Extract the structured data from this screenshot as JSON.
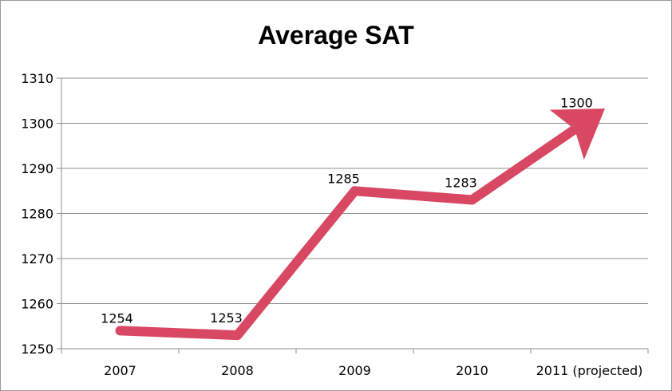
{
  "chart_data": {
    "type": "line",
    "title": "Average SAT",
    "xlabel": "",
    "ylabel": "",
    "categories": [
      "2007",
      "2008",
      "2009",
      "2010",
      "2011 (projected)"
    ],
    "series": [
      {
        "values": [
          1254,
          1253,
          1285,
          1283,
          1300
        ],
        "color": "#d94862"
      }
    ],
    "data_labels": [
      "1254",
      "1253",
      "1285",
      "1283",
      "1300"
    ],
    "ylim": [
      1250,
      1310
    ],
    "yticks": [
      1250,
      1260,
      1270,
      1280,
      1290,
      1300,
      1310
    ],
    "ytick_labels": [
      "1250",
      "1260",
      "1270",
      "1280",
      "1290",
      "1300",
      "1310"
    ],
    "grid": true,
    "legend": "none",
    "last_point_arrow": true
  }
}
